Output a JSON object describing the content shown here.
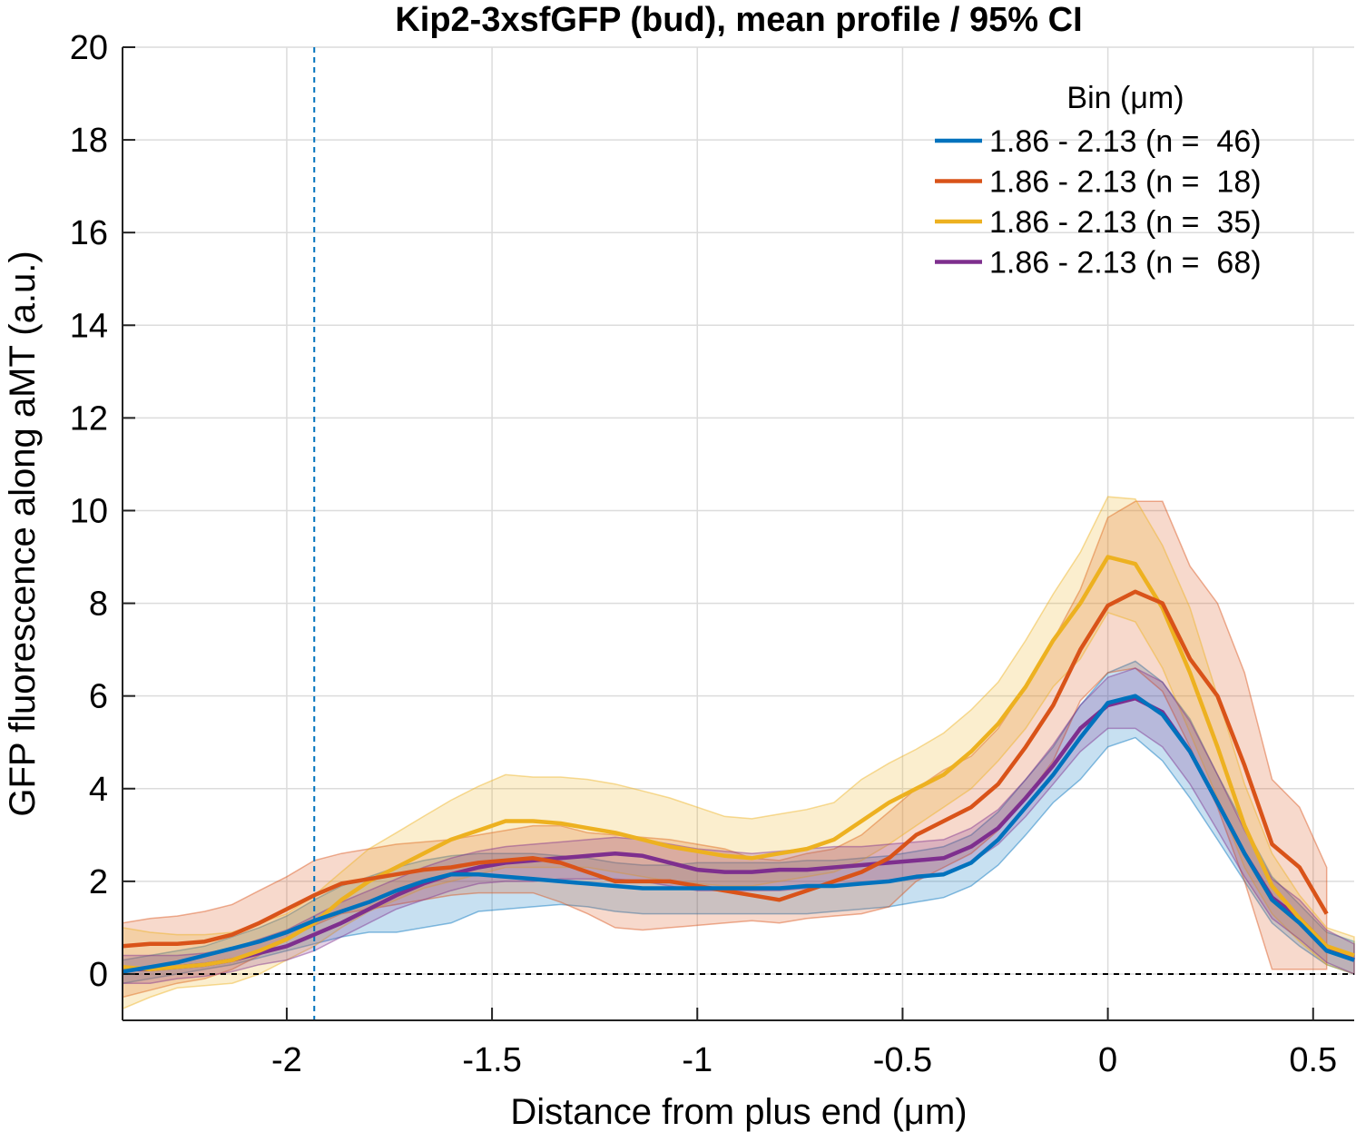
{
  "chart_data": {
    "type": "line",
    "title": "Kip2-3xsfGFP (bud), mean profile / 95% CI",
    "xlabel": "Distance from plus end (μm)",
    "ylabel": "GFP fluorescence along aMT (a.u.)",
    "xlim": [
      -2.4,
      0.6
    ],
    "ylim": [
      -1,
      20
    ],
    "xticks": [
      -2,
      -1.5,
      -1,
      -0.5,
      0,
      0.5
    ],
    "xtick_labels": [
      "-2",
      "-1.5",
      "-1",
      "-0.5",
      "0",
      "0.5"
    ],
    "yticks": [
      0,
      2,
      4,
      6,
      8,
      10,
      12,
      14,
      16,
      18,
      20
    ],
    "ytick_labels": [
      "0",
      "2",
      "4",
      "6",
      "8",
      "10",
      "12",
      "14",
      "16",
      "18",
      "20"
    ],
    "grid": true,
    "legend_title": "Bin (μm)",
    "legend_position": "top-right",
    "reference_lines": {
      "horizontal_y": 0,
      "vertical_x": -1.933
    },
    "x": [
      -2.4,
      -2.333,
      -2.267,
      -2.2,
      -2.133,
      -2.067,
      -2.0,
      -1.933,
      -1.867,
      -1.8,
      -1.733,
      -1.667,
      -1.6,
      -1.533,
      -1.467,
      -1.4,
      -1.333,
      -1.267,
      -1.2,
      -1.133,
      -1.067,
      -1.0,
      -0.933,
      -0.867,
      -0.8,
      -0.733,
      -0.667,
      -0.6,
      -0.533,
      -0.467,
      -0.4,
      -0.333,
      -0.267,
      -0.2,
      -0.133,
      -0.067,
      0.0,
      0.067,
      0.133,
      0.2,
      0.267,
      0.333,
      0.4,
      0.467,
      0.533,
      0.6
    ],
    "series": [
      {
        "name": "1.86 - 2.13 (n =  46)",
        "color": "#0072BD",
        "mean": [
          0.05,
          0.15,
          0.25,
          0.4,
          0.55,
          0.7,
          0.9,
          1.15,
          1.35,
          1.55,
          1.8,
          2.0,
          2.15,
          2.15,
          2.1,
          2.05,
          2.0,
          1.95,
          1.9,
          1.85,
          1.85,
          1.85,
          1.85,
          1.85,
          1.85,
          1.9,
          1.9,
          1.95,
          2.0,
          2.1,
          2.15,
          2.4,
          2.9,
          3.6,
          4.3,
          5.1,
          5.85,
          6.0,
          5.6,
          4.8,
          3.7,
          2.6,
          1.6,
          1.1,
          0.5,
          0.3
        ],
        "lower": [
          -0.2,
          -0.1,
          0.0,
          0.1,
          0.2,
          0.35,
          0.5,
          0.65,
          0.8,
          0.9,
          0.9,
          1.0,
          1.1,
          1.35,
          1.4,
          1.45,
          1.5,
          1.45,
          1.35,
          1.3,
          1.3,
          1.3,
          1.3,
          1.3,
          1.3,
          1.3,
          1.35,
          1.4,
          1.45,
          1.55,
          1.65,
          1.9,
          2.35,
          3.0,
          3.7,
          4.2,
          4.9,
          5.1,
          4.6,
          3.8,
          2.9,
          2.0,
          1.1,
          0.6,
          0.2,
          0.0
        ],
        "upper": [
          0.3,
          0.4,
          0.5,
          0.6,
          0.8,
          1.0,
          1.25,
          1.6,
          1.9,
          2.1,
          2.3,
          2.45,
          2.55,
          2.6,
          2.6,
          2.6,
          2.55,
          2.5,
          2.4,
          2.35,
          2.35,
          2.4,
          2.4,
          2.4,
          2.4,
          2.45,
          2.45,
          2.5,
          2.55,
          2.65,
          2.75,
          3.0,
          3.5,
          4.2,
          4.9,
          5.8,
          6.5,
          6.75,
          6.3,
          5.5,
          4.3,
          3.2,
          2.1,
          1.5,
          0.9,
          0.7
        ]
      },
      {
        "name": "1.86 - 2.13 (n =  18)",
        "color": "#D95319",
        "mean": [
          0.6,
          0.65,
          0.65,
          0.7,
          0.85,
          1.1,
          1.4,
          1.7,
          1.95,
          2.05,
          2.15,
          2.25,
          2.3,
          2.4,
          2.45,
          2.5,
          2.4,
          2.2,
          2.0,
          2.0,
          2.0,
          1.9,
          1.8,
          1.7,
          1.6,
          1.8,
          2.0,
          2.2,
          2.5,
          3.0,
          3.3,
          3.6,
          4.1,
          4.9,
          5.8,
          7.0,
          7.95,
          8.25,
          8.0,
          6.8,
          6.0,
          4.5,
          2.8,
          2.3,
          1.3,
          null
        ],
        "lower": [
          -0.5,
          -0.35,
          -0.2,
          -0.1,
          0.1,
          0.4,
          0.75,
          1.05,
          1.3,
          1.4,
          1.5,
          1.6,
          1.7,
          1.75,
          1.75,
          1.75,
          1.55,
          1.3,
          1.0,
          0.95,
          1.0,
          1.05,
          1.1,
          1.15,
          1.1,
          1.2,
          1.25,
          1.3,
          1.45,
          2.0,
          2.3,
          2.6,
          3.1,
          3.8,
          4.6,
          5.9,
          6.5,
          6.6,
          6.1,
          4.9,
          3.6,
          2.0,
          0.1,
          0.1,
          0.1,
          null
        ],
        "upper": [
          1.1,
          1.2,
          1.25,
          1.35,
          1.5,
          1.8,
          2.1,
          2.45,
          2.6,
          2.7,
          2.8,
          2.85,
          2.9,
          3.0,
          3.1,
          3.2,
          3.2,
          3.05,
          3.0,
          2.95,
          2.9,
          2.8,
          2.7,
          2.5,
          2.45,
          2.6,
          2.7,
          3.0,
          3.5,
          4.0,
          4.4,
          4.7,
          5.3,
          6.2,
          7.2,
          8.3,
          9.85,
          10.2,
          10.2,
          8.8,
          8.0,
          6.5,
          4.2,
          3.6,
          2.3,
          null
        ]
      },
      {
        "name": "1.86 - 2.13 (n =  35)",
        "color": "#EDB120",
        "mean": [
          0.15,
          0.1,
          0.15,
          0.2,
          0.3,
          0.5,
          0.75,
          1.1,
          1.6,
          2.0,
          2.3,
          2.6,
          2.9,
          3.1,
          3.3,
          3.3,
          3.25,
          3.15,
          3.05,
          2.9,
          2.75,
          2.65,
          2.55,
          2.5,
          2.6,
          2.7,
          2.9,
          3.3,
          3.7,
          4.0,
          4.3,
          4.8,
          5.4,
          6.2,
          7.2,
          8.0,
          9.0,
          8.85,
          7.9,
          6.5,
          4.9,
          3.2,
          1.9,
          1.2,
          0.6,
          0.4
        ],
        "lower": [
          -0.75,
          -0.5,
          -0.3,
          -0.25,
          -0.2,
          0.0,
          0.3,
          0.6,
          1.0,
          1.35,
          1.6,
          1.85,
          2.0,
          2.15,
          2.3,
          2.3,
          2.3,
          2.3,
          2.2,
          2.1,
          2.0,
          1.95,
          1.9,
          1.9,
          2.0,
          2.1,
          2.2,
          2.45,
          2.8,
          3.2,
          3.6,
          4.0,
          4.6,
          5.3,
          6.2,
          6.8,
          7.8,
          7.6,
          6.6,
          5.2,
          3.8,
          2.3,
          1.3,
          0.7,
          0.2,
          0.0
        ],
        "upper": [
          1.0,
          0.9,
          0.85,
          0.85,
          0.9,
          1.1,
          1.3,
          1.7,
          2.2,
          2.7,
          3.05,
          3.4,
          3.75,
          4.05,
          4.3,
          4.25,
          4.25,
          4.2,
          4.1,
          3.95,
          3.8,
          3.6,
          3.4,
          3.35,
          3.45,
          3.55,
          3.7,
          4.2,
          4.55,
          4.85,
          5.2,
          5.7,
          6.3,
          7.2,
          8.2,
          9.1,
          10.3,
          10.25,
          9.25,
          7.9,
          6.0,
          4.1,
          2.6,
          1.7,
          1.0,
          0.8
        ]
      },
      {
        "name": "1.86 - 2.13 (n =  68)",
        "color": "#7E2F8E",
        "mean": [
          0.1,
          0.1,
          0.15,
          0.2,
          0.3,
          0.45,
          0.6,
          0.85,
          1.1,
          1.4,
          1.7,
          1.95,
          2.15,
          2.3,
          2.4,
          2.45,
          2.5,
          2.55,
          2.6,
          2.55,
          2.4,
          2.25,
          2.2,
          2.2,
          2.25,
          2.25,
          2.3,
          2.35,
          2.4,
          2.45,
          2.5,
          2.75,
          3.15,
          3.8,
          4.5,
          5.3,
          5.8,
          5.95,
          5.65,
          4.8,
          3.7,
          2.6,
          1.65,
          1.2,
          0.6,
          0.3
        ],
        "lower": [
          -0.2,
          -0.2,
          -0.1,
          -0.05,
          0.05,
          0.2,
          0.3,
          0.5,
          0.8,
          1.1,
          1.4,
          1.6,
          1.8,
          1.95,
          2.0,
          2.0,
          2.05,
          2.05,
          2.05,
          2.0,
          1.9,
          1.8,
          1.8,
          1.8,
          1.8,
          1.85,
          1.9,
          1.95,
          2.0,
          2.05,
          2.15,
          2.4,
          2.8,
          3.4,
          4.1,
          4.8,
          5.3,
          5.3,
          4.9,
          4.1,
          3.1,
          2.1,
          1.2,
          0.75,
          0.25,
          0.0
        ],
        "upper": [
          0.4,
          0.4,
          0.4,
          0.45,
          0.55,
          0.75,
          0.95,
          1.25,
          1.55,
          1.8,
          2.05,
          2.3,
          2.5,
          2.65,
          2.75,
          2.8,
          2.85,
          2.9,
          2.95,
          2.9,
          2.8,
          2.7,
          2.65,
          2.6,
          2.65,
          2.7,
          2.75,
          2.75,
          2.8,
          2.85,
          2.9,
          3.15,
          3.55,
          4.2,
          4.95,
          5.8,
          6.4,
          6.6,
          6.3,
          5.45,
          4.3,
          3.1,
          2.05,
          1.6,
          0.95,
          0.65
        ]
      }
    ]
  }
}
